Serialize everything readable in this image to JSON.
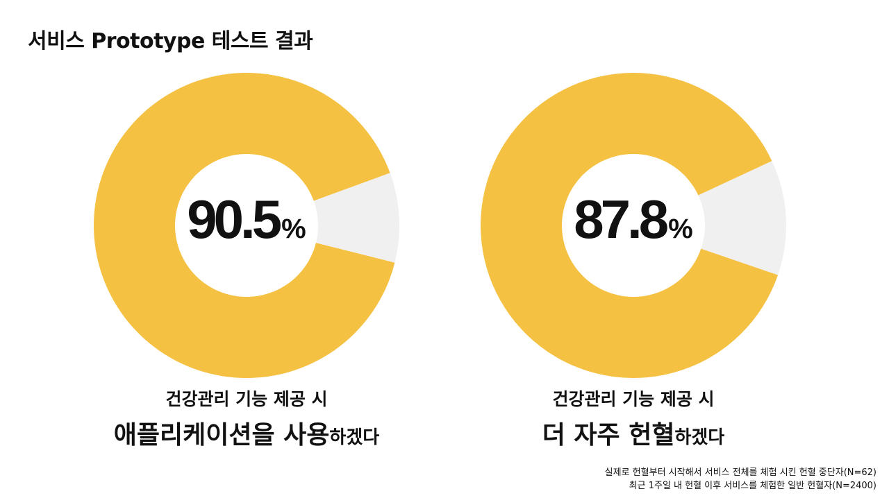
{
  "title": "서비스 Prototype 테스트 결과",
  "colors": {
    "filled": "#F5C143",
    "remainder": "#F0F0F0",
    "hole": "#FFFFFF"
  },
  "chart_data": [
    {
      "type": "pie",
      "donut": true,
      "value_label": "90.5",
      "unit": "%",
      "slices": [
        {
          "label": "",
          "value": 90.5
        },
        {
          "label": "",
          "value": 9.5
        }
      ],
      "caption": {
        "line1": "건강관리 기능 제공 시",
        "emph": "애플리케이션을 사용",
        "rest": "하겠다"
      }
    },
    {
      "type": "pie",
      "donut": true,
      "value_label": "87.8",
      "unit": "%",
      "slices": [
        {
          "label": "",
          "value": 87.8
        },
        {
          "label": "",
          "value": 12.2
        }
      ],
      "caption": {
        "line1": "건강관리 기능 제공 시",
        "emph": "더 자주 헌혈",
        "rest": "하겠다"
      }
    }
  ],
  "notes": [
    "실제로 헌혈부터 시작해서 서비스 전체를 체험 시킨 헌혈 중단자(N=62)",
    "최근 1주일 내 헌혈 이후 서비스를 체험한 일반 헌혈자(N=2400)"
  ]
}
